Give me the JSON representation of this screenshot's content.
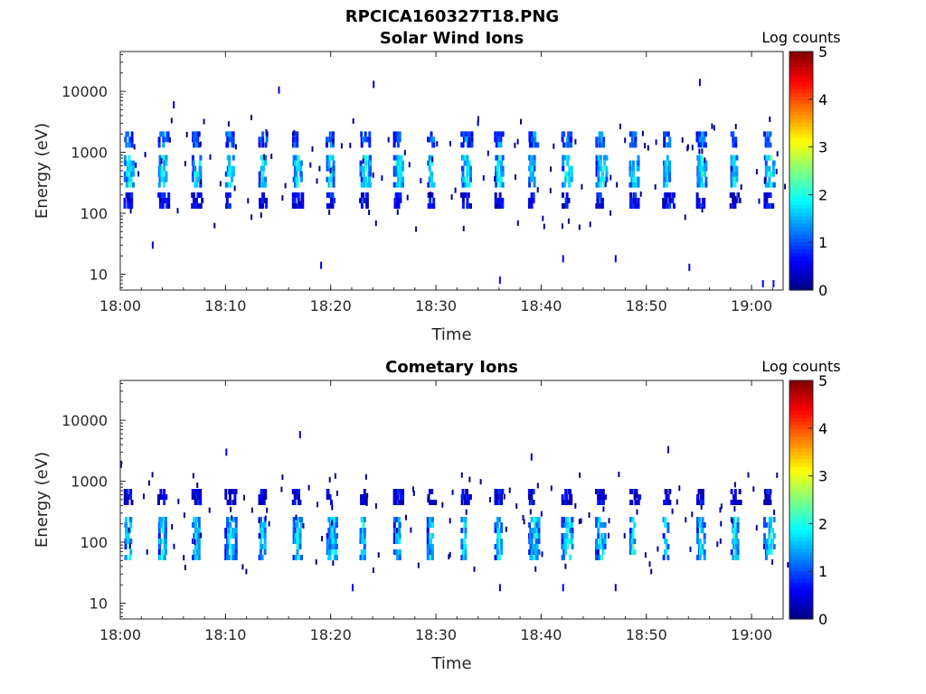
{
  "figure": {
    "suptitle": "RPCICA160327T18.PNG"
  },
  "chart_data": [
    {
      "type": "heatmap",
      "title": "Solar Wind Ions",
      "xlabel": "Time",
      "ylabel": "Energy (eV)",
      "xlim": [
        "18:00",
        "19:03"
      ],
      "ylim": [
        5.5,
        45000
      ],
      "yscale": "log",
      "x_ticks": [
        "18:00",
        "18:10",
        "18:20",
        "18:30",
        "18:40",
        "18:50",
        "19:00"
      ],
      "y_ticks": [
        "10",
        "100",
        "1000",
        "10000"
      ],
      "colorbar": {
        "label": "Log counts",
        "min": 0,
        "max": 5,
        "ticks": [
          "0",
          "1",
          "2",
          "3",
          "4",
          "5"
        ],
        "colormap": "jet"
      },
      "cycle_minutes": 3.2,
      "bands": [
        {
          "low": 300,
          "high": 900,
          "intensity": 2.0
        },
        {
          "low": 1300,
          "high": 2200,
          "intensity": 1.3
        },
        {
          "low": 120,
          "high": 220,
          "intensity": 0.7
        }
      ],
      "sparse_points": [
        {
          "time": "18:05",
          "energy": 6000,
          "log_counts": 0.4
        },
        {
          "time": "18:15",
          "energy": 10500,
          "log_counts": 0.4
        },
        {
          "time": "18:24",
          "energy": 13000,
          "log_counts": 0.4
        },
        {
          "time": "18:55",
          "energy": 14000,
          "log_counts": 0.4
        },
        {
          "time": "18:36",
          "energy": 8,
          "log_counts": 0.6
        },
        {
          "time": "19:01",
          "energy": 7,
          "log_counts": 0.6
        },
        {
          "time": "19:02",
          "energy": 7,
          "log_counts": 0.6
        },
        {
          "time": "18:54",
          "energy": 13,
          "log_counts": 0.6
        },
        {
          "time": "18:03",
          "energy": 30,
          "log_counts": 0.5
        },
        {
          "time": "18:19",
          "energy": 14,
          "log_counts": 0.5
        },
        {
          "time": "18:42",
          "energy": 18,
          "log_counts": 0.5
        },
        {
          "time": "18:47",
          "energy": 18,
          "log_counts": 0.5
        }
      ]
    },
    {
      "type": "heatmap",
      "title": "Cometary Ions",
      "xlabel": "Time",
      "ylabel": "Energy (eV)",
      "xlim": [
        "18:00",
        "19:03"
      ],
      "ylim": [
        5.5,
        45000
      ],
      "yscale": "log",
      "x_ticks": [
        "18:00",
        "18:10",
        "18:20",
        "18:30",
        "18:40",
        "18:50",
        "19:00"
      ],
      "y_ticks": [
        "10",
        "100",
        "1000",
        "10000"
      ],
      "colorbar": {
        "label": "Log counts",
        "min": 0,
        "max": 5,
        "ticks": [
          "0",
          "1",
          "2",
          "3",
          "4",
          "5"
        ],
        "colormap": "jet"
      },
      "cycle_minutes": 3.2,
      "bands": [
        {
          "low": 60,
          "high": 260,
          "intensity": 1.9
        },
        {
          "low": 450,
          "high": 750,
          "intensity": 0.6
        }
      ],
      "sparse_points": [
        {
          "time": "18:17",
          "energy": 5800,
          "log_counts": 0.4
        },
        {
          "time": "18:10",
          "energy": 3000,
          "log_counts": 0.4
        },
        {
          "time": "18:52",
          "energy": 3300,
          "log_counts": 0.4
        },
        {
          "time": "18:22",
          "energy": 18,
          "log_counts": 0.5
        },
        {
          "time": "18:36",
          "energy": 18,
          "log_counts": 0.5
        },
        {
          "time": "18:42",
          "energy": 18,
          "log_counts": 0.5
        },
        {
          "time": "18:47",
          "energy": 18,
          "log_counts": 0.5
        },
        {
          "time": "18:39",
          "energy": 2500,
          "log_counts": 0.4
        },
        {
          "time": "18:00",
          "energy": 1900,
          "log_counts": 0.4
        }
      ]
    }
  ]
}
